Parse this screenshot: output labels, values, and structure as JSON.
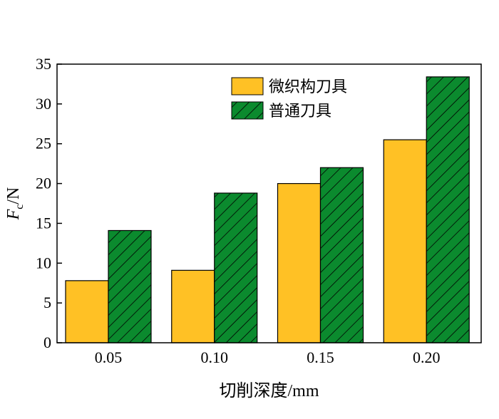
{
  "chart_data": {
    "type": "bar",
    "categories": [
      "0.05",
      "0.10",
      "0.15",
      "0.20"
    ],
    "series": [
      {
        "name": "微织构刀具",
        "values": [
          7.8,
          9.1,
          20.0,
          25.5
        ],
        "color": "#FFC125",
        "pattern": "solid"
      },
      {
        "name": "普通刀具",
        "values": [
          14.1,
          18.8,
          22.0,
          33.4
        ],
        "color": "#0B8A2E",
        "pattern": "hatch"
      }
    ],
    "xlabel": "切削深度/mm",
    "ylabel_main": "F",
    "ylabel_sub": "c",
    "ylabel_unit": "/N",
    "ylim": [
      0,
      35
    ],
    "yticks": [
      "0",
      "5",
      "10",
      "15",
      "20",
      "25",
      "30",
      "35"
    ],
    "legend_position": "top-left-inside",
    "grid": false
  }
}
